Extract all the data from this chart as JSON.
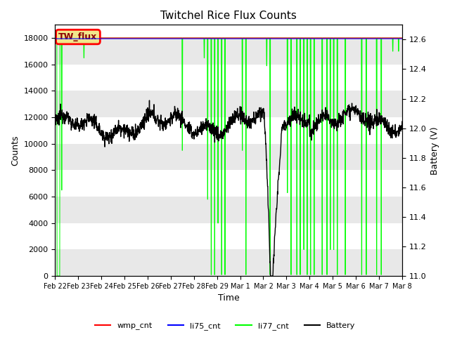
{
  "title": "Twitchel Rice Flux Counts",
  "xlabel": "Time",
  "ylabel": "Counts",
  "ylabel2": "Battery (V)",
  "ylim": [
    0,
    19000
  ],
  "ylim2": [
    11.0,
    12.7
  ],
  "yticks": [
    0,
    2000,
    4000,
    6000,
    8000,
    10000,
    12000,
    14000,
    16000,
    18000
  ],
  "yticks2": [
    11.0,
    11.2,
    11.4,
    11.6,
    11.8,
    12.0,
    12.2,
    12.4,
    12.6
  ],
  "xtick_labels": [
    "Feb 22",
    "Feb 23",
    "Feb 24",
    "Feb 25",
    "Feb 26",
    "Feb 27",
    "Feb 28",
    "Feb 29",
    "Mar 1",
    "Mar 2",
    "Mar 3",
    "Mar 4",
    "Mar 5",
    "Mar 6",
    "Mar 7",
    "Mar 8"
  ],
  "legend_labels": [
    "wmp_cnt",
    "li75_cnt",
    "li77_cnt",
    "Battery"
  ],
  "legend_colors": [
    "red",
    "blue",
    "lime",
    "black"
  ],
  "wmp_color": "red",
  "li75_color": "blue",
  "li77_color": "lime",
  "battery_color": "black",
  "band_color": "#e8e8e8",
  "annotation_text": "TW_flux",
  "annotation_bg": "#f0e68c",
  "annotation_border": "red",
  "wmp_value": 18000,
  "li75_value": 18000,
  "background_color": "white",
  "n_days": 15,
  "batt_ylim": [
    11.0,
    12.6
  ],
  "counts_ylim": [
    0,
    18000
  ]
}
